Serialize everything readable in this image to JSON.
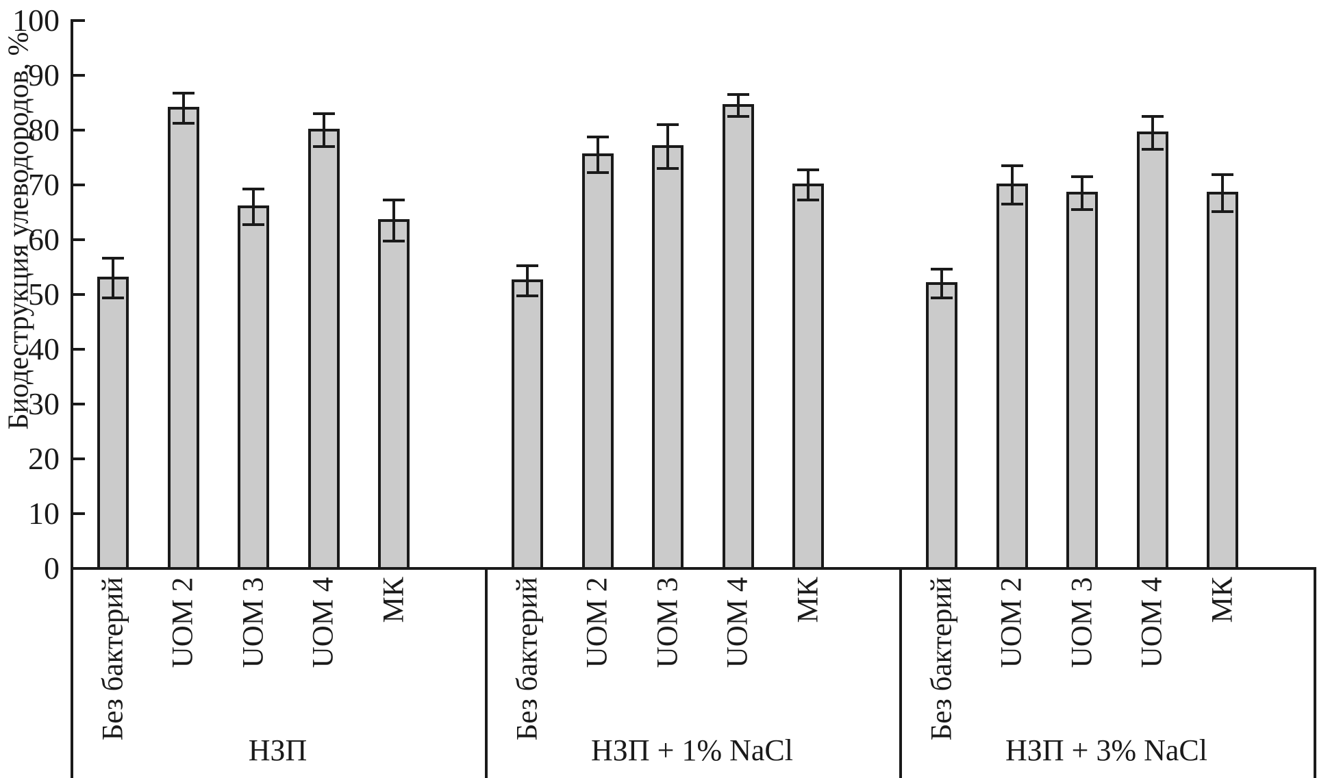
{
  "chart_data": {
    "type": "bar",
    "title": "",
    "xlabel": "",
    "ylabel": "Биодеструкция улеводородов, %",
    "ylim": [
      0,
      100
    ],
    "yticks": [
      0,
      10,
      20,
      30,
      40,
      50,
      60,
      70,
      80,
      90,
      100
    ],
    "grid": false,
    "legend": false,
    "error_bars": true,
    "bar_unit": "%",
    "groups": [
      {
        "label": "НЗП",
        "bars": [
          {
            "label": "Без бактерий",
            "value": 53,
            "error": 3.6
          },
          {
            "label": "UOM 2",
            "value": 84,
            "error": 2.8
          },
          {
            "label": "UOM 3",
            "value": 66,
            "error": 3.3
          },
          {
            "label": "UOM 4",
            "value": 80,
            "error": 3.0
          },
          {
            "label": "МК",
            "value": 63.5,
            "error": 3.8
          }
        ]
      },
      {
        "label": "НЗП + 1% NaCl",
        "bars": [
          {
            "label": "Без бактерий",
            "value": 52.5,
            "error": 2.8
          },
          {
            "label": "UOM 2",
            "value": 75.5,
            "error": 3.3
          },
          {
            "label": "UOM 3",
            "value": 77,
            "error": 4.0
          },
          {
            "label": "UOM 4",
            "value": 84.5,
            "error": 2.0
          },
          {
            "label": "МК",
            "value": 70,
            "error": 2.8
          }
        ]
      },
      {
        "label": "НЗП + 3% NaCl",
        "bars": [
          {
            "label": "Без бактерий",
            "value": 52,
            "error": 2.6
          },
          {
            "label": "UOM 2",
            "value": 70,
            "error": 3.5
          },
          {
            "label": "UOM 3",
            "value": 68.5,
            "error": 3.0
          },
          {
            "label": "UOM 4",
            "value": 79.5,
            "error": 3.0
          },
          {
            "label": "МК",
            "value": 68.5,
            "error": 3.4
          }
        ]
      }
    ]
  },
  "colors": {
    "bar_fill": "#cbcbcb",
    "line": "#1a1a1a",
    "text": "#1a1a1a",
    "background": "#ffffff"
  }
}
